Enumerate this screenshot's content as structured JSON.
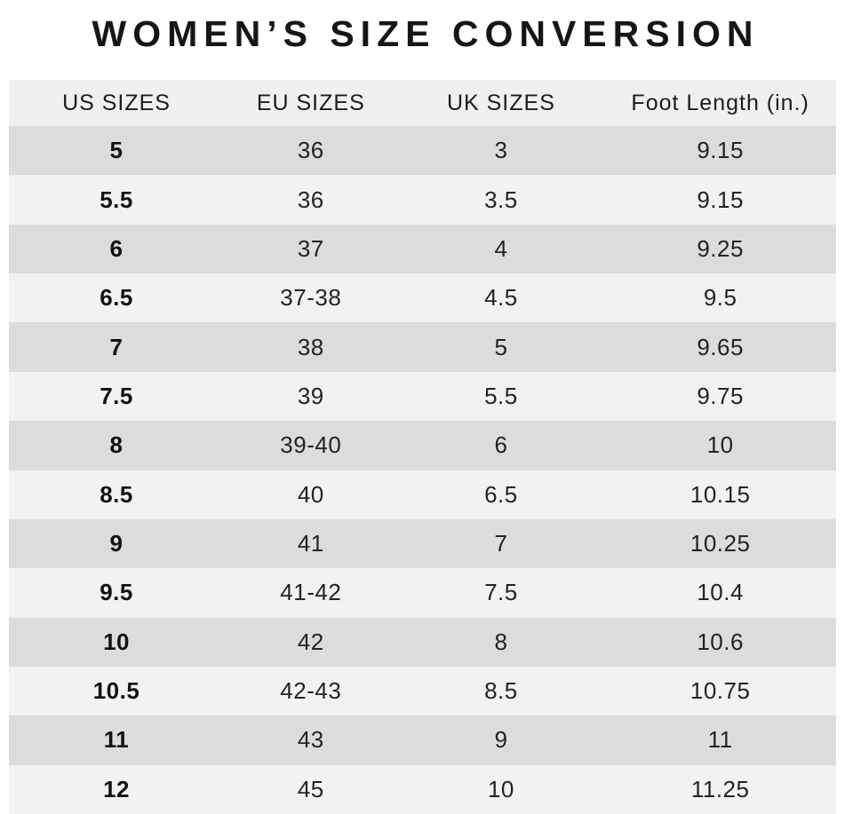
{
  "title": "WOMEN’S SIZE CONVERSION",
  "chart_data": {
    "type": "table",
    "title": "WOMEN’S SIZE CONVERSION",
    "columns": [
      "US SIZES",
      "EU SIZES",
      "UK SIZES",
      "Foot Length (in.)"
    ],
    "rows": [
      [
        "5",
        "36",
        "3",
        "9.15"
      ],
      [
        "5.5",
        "36",
        "3.5",
        "9.15"
      ],
      [
        "6",
        "37",
        "4",
        "9.25"
      ],
      [
        "6.5",
        "37-38",
        "4.5",
        "9.5"
      ],
      [
        "7",
        "38",
        "5",
        "9.65"
      ],
      [
        "7.5",
        "39",
        "5.5",
        "9.75"
      ],
      [
        "8",
        "39-40",
        "6",
        "10"
      ],
      [
        "8.5",
        "40",
        "6.5",
        "10.15"
      ],
      [
        "9",
        "41",
        "7",
        "10.25"
      ],
      [
        "9.5",
        "41-42",
        "7.5",
        "10.4"
      ],
      [
        "10",
        "42",
        "8",
        "10.6"
      ],
      [
        "10.5",
        "42-43",
        "8.5",
        "10.75"
      ],
      [
        "11",
        "43",
        "9",
        "11"
      ],
      [
        "12",
        "45",
        "10",
        "11.25"
      ]
    ],
    "layout": {
      "alternating_rows": true,
      "first_data_row_shade": "dark"
    },
    "colors": {
      "header_bg": "#f0f0f0",
      "row_alt_dark": "#dcdcdc",
      "row_alt_light": "#f2f2f2",
      "text": "#1c1c1c"
    }
  }
}
